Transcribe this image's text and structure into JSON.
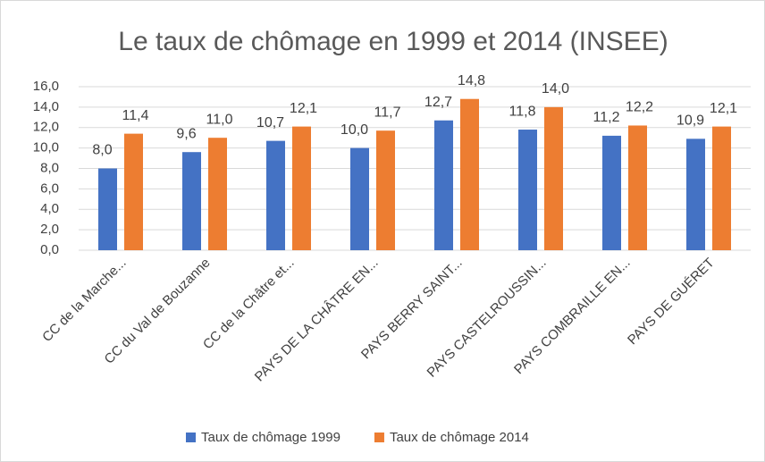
{
  "chart_data": {
    "type": "bar",
    "title": "Le taux de chômage en 1999 et 2014 (INSEE)",
    "categories": [
      "CC de la Marche...",
      "CC du Val de Bouzanne",
      "CC de la Châtre et...",
      "PAYS DE LA CHÂTRE EN...",
      "PAYS BERRY SAINT...",
      "PAYS CASTELROUSSIN...",
      "PAYS COMBRAILLE EN...",
      "PAYS DE GUÉRET"
    ],
    "series": [
      {
        "name": "Taux de chômage 1999",
        "color": "#4472c4",
        "values": [
          8.0,
          9.6,
          10.7,
          10.0,
          12.7,
          11.8,
          11.2,
          10.9
        ],
        "value_labels": [
          "8,0",
          "9,6",
          "10,7",
          "10,0",
          "12,7",
          "11,8",
          "11,2",
          "10,9"
        ]
      },
      {
        "name": "Taux de chômage 2014",
        "color": "#ed7d31",
        "values": [
          11.4,
          11.0,
          12.1,
          11.7,
          14.8,
          14.0,
          12.2,
          12.1
        ],
        "value_labels": [
          "11,4",
          "11,0",
          "12,1",
          "11,7",
          "14,8",
          "14,0",
          "12,2",
          "12,1"
        ]
      }
    ],
    "ylim": [
      0,
      16
    ],
    "yticks": [
      {
        "value": 0,
        "label": "0,0"
      },
      {
        "value": 2,
        "label": "2,0"
      },
      {
        "value": 4,
        "label": "4,0"
      },
      {
        "value": 6,
        "label": "6,0"
      },
      {
        "value": 8,
        "label": "8,0"
      },
      {
        "value": 10,
        "label": "10,0"
      },
      {
        "value": 12,
        "label": "12,0"
      },
      {
        "value": 14,
        "label": "14,0"
      },
      {
        "value": 16,
        "label": "16,0"
      }
    ],
    "grid": true,
    "legend": "bottom"
  }
}
